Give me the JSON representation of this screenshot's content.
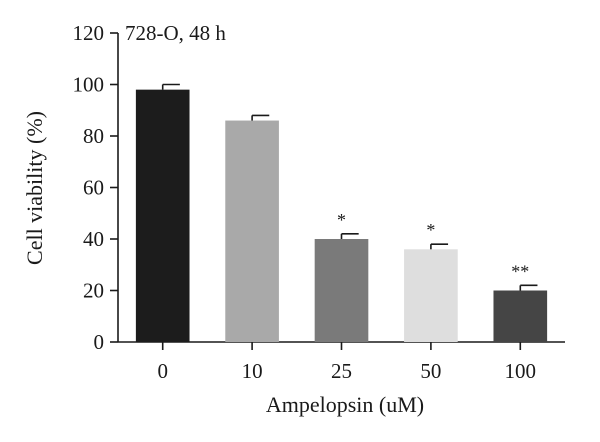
{
  "chart_data": {
    "type": "bar",
    "title": "728-O, 48 h",
    "xlabel": "Ampelopsin (uM)",
    "ylabel": "Cell viability (%)",
    "categories": [
      "0",
      "10",
      "25",
      "50",
      "100"
    ],
    "values": [
      98,
      86,
      40,
      36,
      20
    ],
    "errors": [
      2.0,
      2.0,
      2.0,
      2.0,
      2.0
    ],
    "significance": [
      "",
      "",
      "*",
      "*",
      "**"
    ],
    "bar_colors": [
      "#1c1c1c",
      "#a9a9a9",
      "#7a7a7a",
      "#dedede",
      "#454545"
    ],
    "ylim": [
      0,
      120
    ],
    "yticks": [
      0,
      20,
      40,
      60,
      80,
      100,
      120
    ],
    "grid": false,
    "legend": "none"
  }
}
